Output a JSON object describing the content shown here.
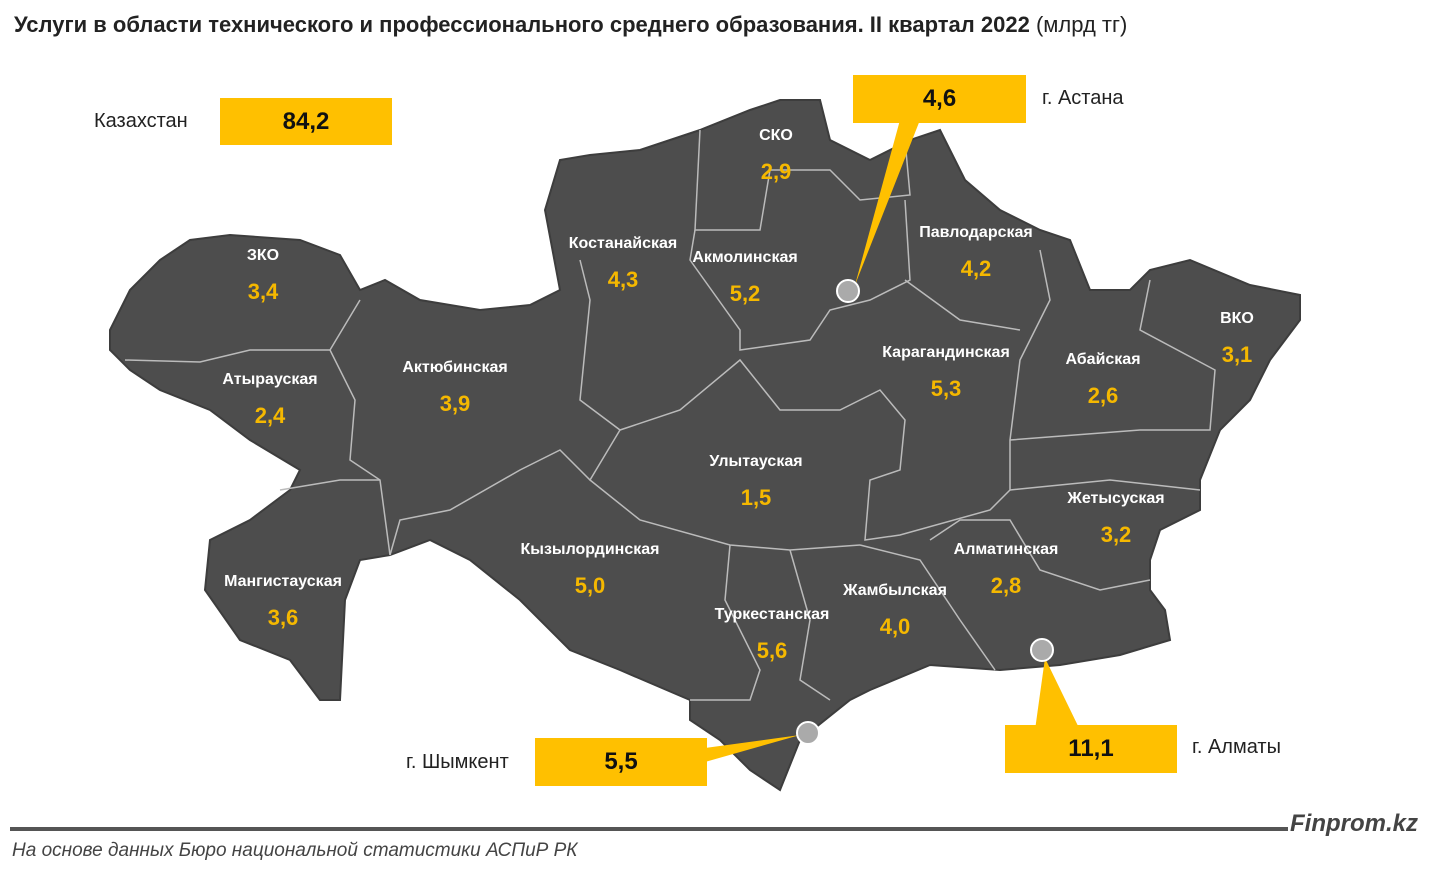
{
  "title": "Услуги в области технического и профессионального среднего образования. II квартал 2022",
  "unit": "(млрд тг)",
  "total": {
    "label": "Казахстан",
    "value": "84,2"
  },
  "cities": [
    {
      "name": "г. Астана",
      "value": "4,6"
    },
    {
      "name": "г. Шымкент",
      "value": "5,5"
    },
    {
      "name": "г. Алматы",
      "value": "11,1"
    }
  ],
  "regions": [
    {
      "name": "ЗКО",
      "value": "3,4"
    },
    {
      "name": "Атырауская",
      "value": "2,4"
    },
    {
      "name": "Мангистауская",
      "value": "3,6"
    },
    {
      "name": "Актюбинская",
      "value": "3,9"
    },
    {
      "name": "Костанайская",
      "value": "4,3"
    },
    {
      "name": "СКО",
      "value": "2,9"
    },
    {
      "name": "Акмолинская",
      "value": "5,2"
    },
    {
      "name": "Павлодарская",
      "value": "4,2"
    },
    {
      "name": "Карагандинская",
      "value": "5,3"
    },
    {
      "name": "Абайская",
      "value": "2,6"
    },
    {
      "name": "ВКО",
      "value": "3,1"
    },
    {
      "name": "Улытауская",
      "value": "1,5"
    },
    {
      "name": "Кызылординская",
      "value": "5,0"
    },
    {
      "name": "Туркестанская",
      "value": "5,6"
    },
    {
      "name": "Жамбылская",
      "value": "4,0"
    },
    {
      "name": "Алматинская",
      "value": "2,8"
    },
    {
      "name": "Жетысуская",
      "value": "3,2"
    }
  ],
  "colors": {
    "map": "#4d4d4d",
    "highlight": "#ffc000",
    "value_text": "#f5b800"
  },
  "footer": {
    "brand": "Finprom.kz",
    "source": "На основе данных Бюро национальной статистики АСПиР РК"
  }
}
